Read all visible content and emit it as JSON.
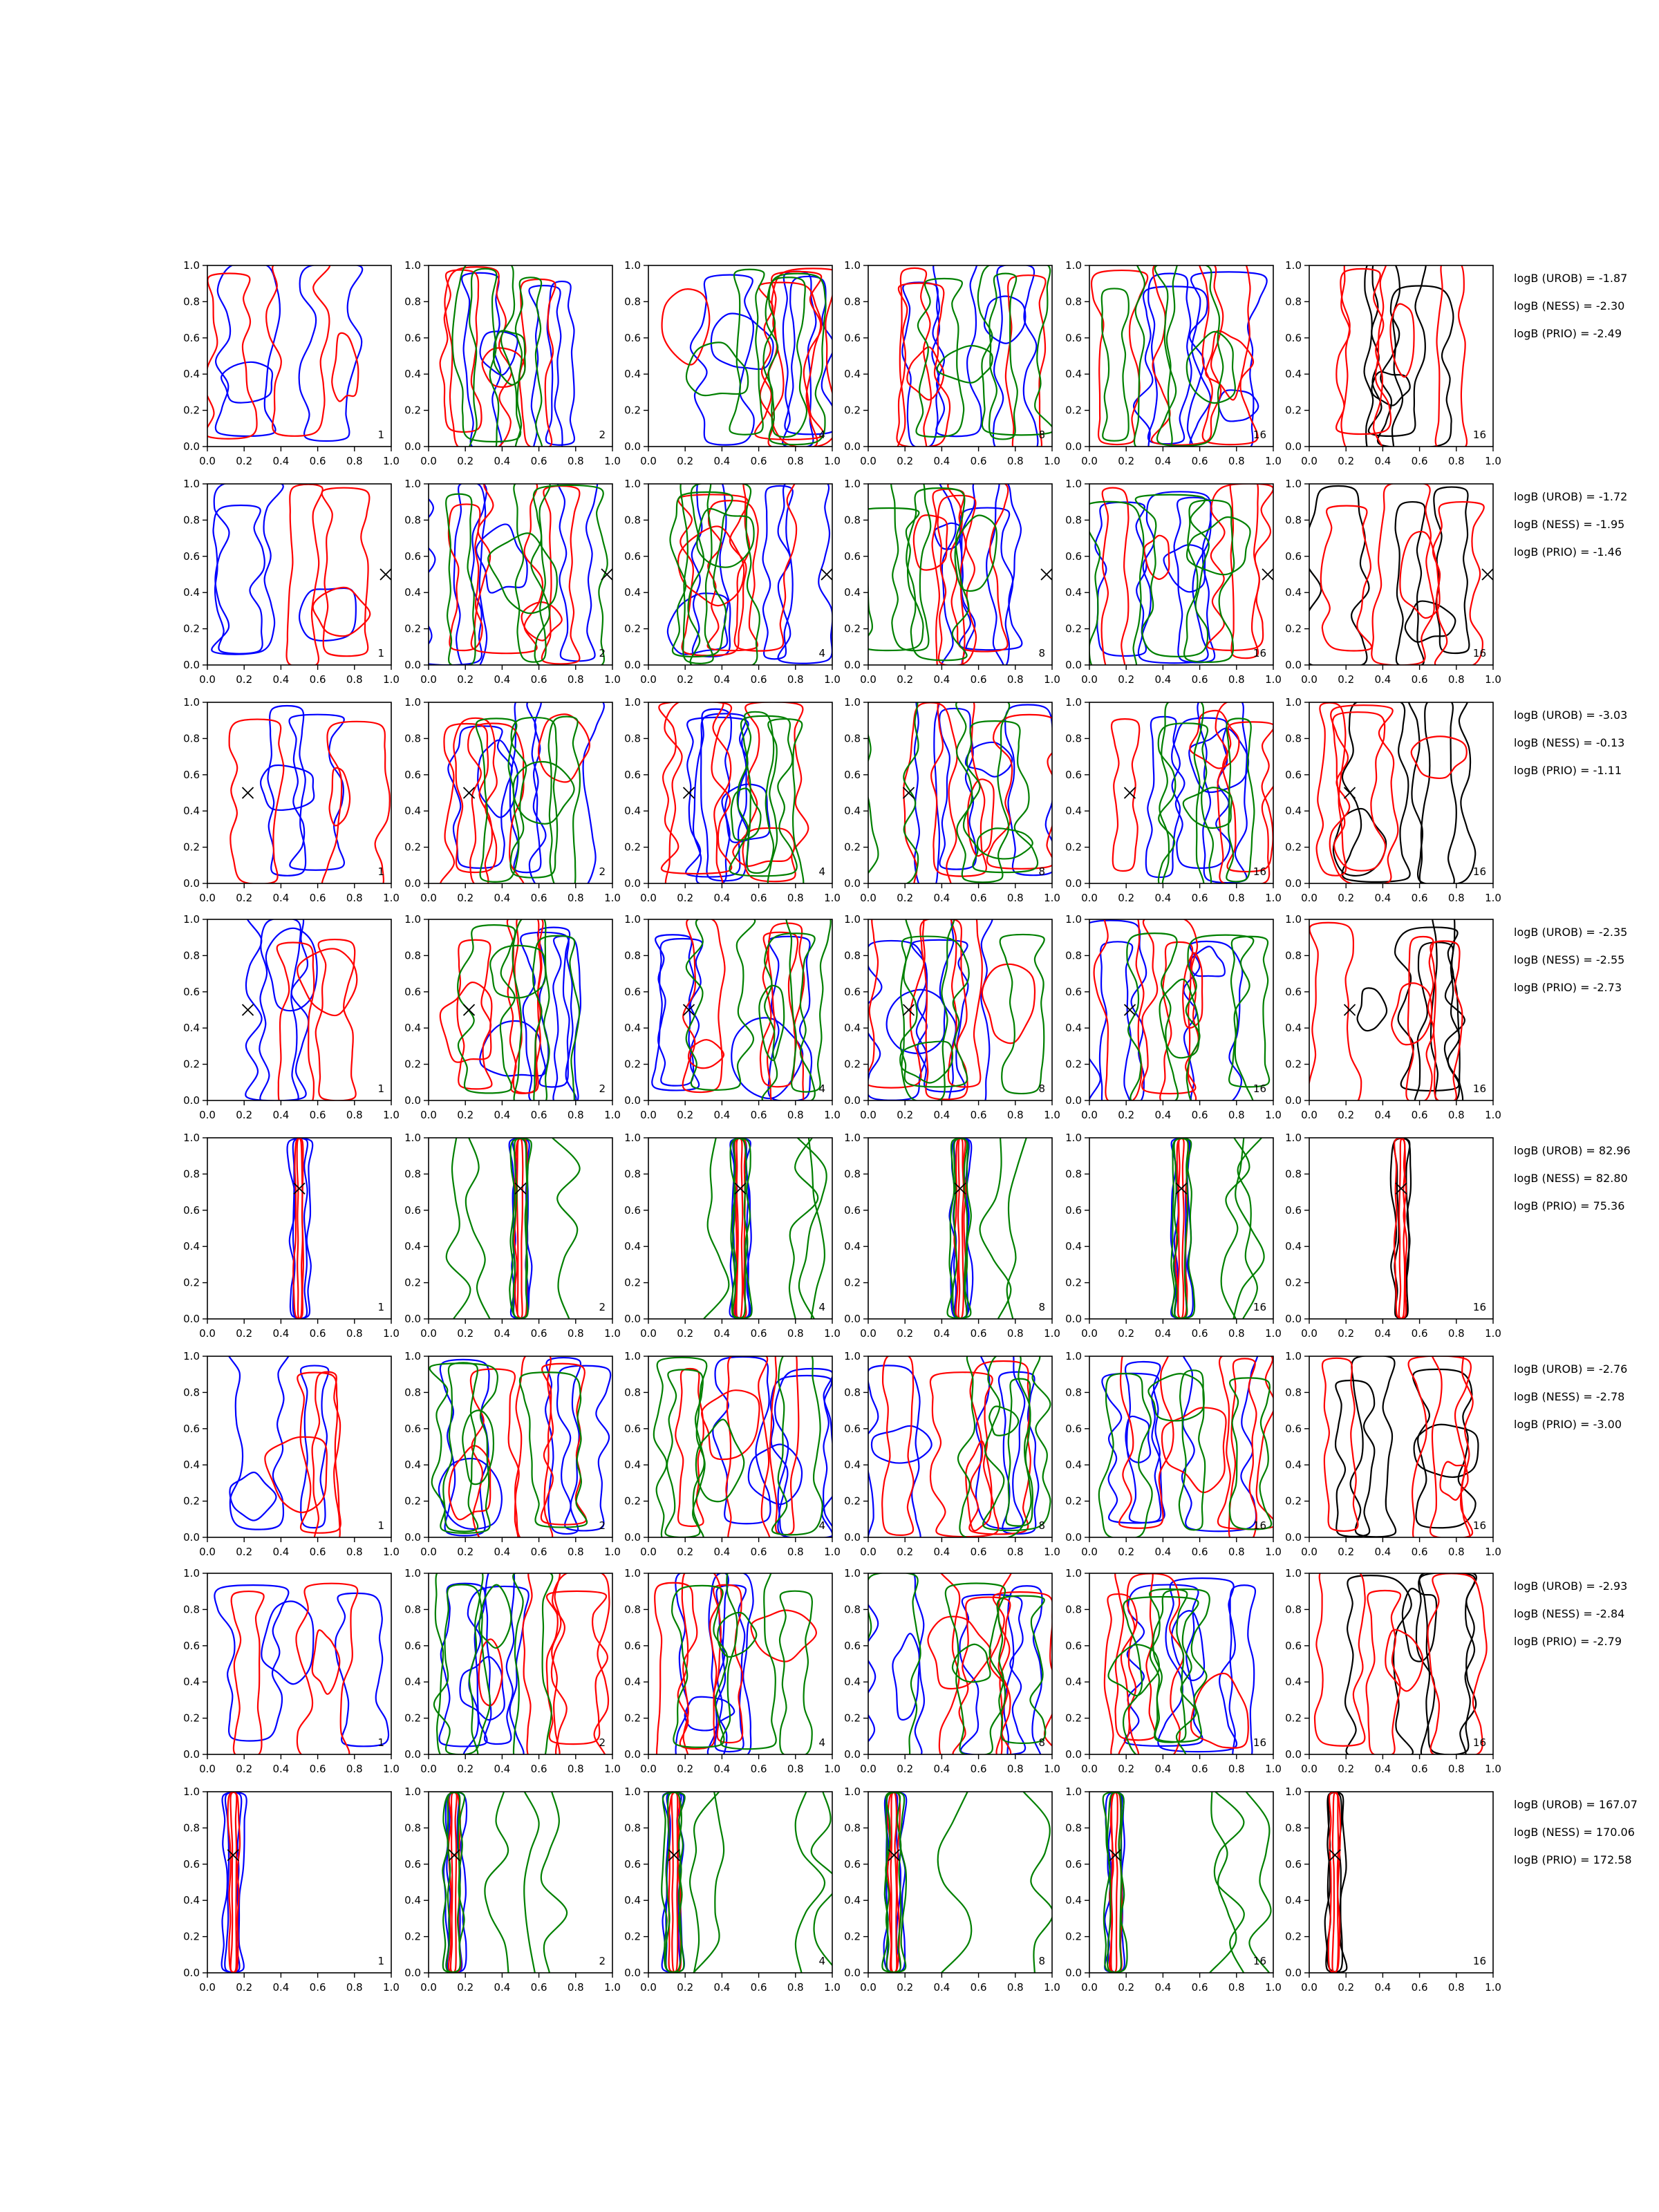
{
  "chart_data": {
    "type": "contour-grid",
    "rows": 8,
    "columns": 6,
    "xlim": [
      0,
      1
    ],
    "ylim": [
      0,
      1
    ],
    "ticks": [
      "0.0",
      "0.2",
      "0.4",
      "0.6",
      "0.8",
      "1.0"
    ],
    "column_labels": [
      "1",
      "2",
      "4",
      "8",
      "16",
      "16"
    ],
    "line_colors": {
      "blue": "#0000ff",
      "red": "#ff0000",
      "green": "#008000",
      "black": "#000000"
    },
    "rows_data": [
      {
        "marker": null,
        "features": "scattered",
        "logB": [
          "logB (UROB) = -1.87",
          "logB (NESS) = -2.30",
          "logB (PRIO) = -2.49"
        ]
      },
      {
        "marker": [
          0.97,
          0.5
        ],
        "features": "scattered",
        "logB": [
          "logB (UROB) = -1.72",
          "logB (NESS) = -1.95",
          "logB (PRIO) = -1.46"
        ]
      },
      {
        "marker": [
          0.22,
          0.5
        ],
        "features": "scattered",
        "logB": [
          "logB (UROB) = -3.03",
          "logB (NESS) = -0.13",
          "logB (PRIO) = -1.11"
        ]
      },
      {
        "marker": [
          0.22,
          0.5
        ],
        "features": "scattered",
        "logB": [
          "logB (UROB) = -2.35",
          "logB (NESS) = -2.55",
          "logB (PRIO) = -2.73"
        ]
      },
      {
        "marker": [
          0.5,
          0.72
        ],
        "features": "peak",
        "logB": [
          "logB (UROB) = 82.96",
          "logB (NESS) = 82.80",
          "logB (PRIO) = 75.36"
        ]
      },
      {
        "marker": null,
        "features": "scattered",
        "logB": [
          "logB (UROB) = -2.76",
          "logB (NESS) = -2.78",
          "logB (PRIO) = -3.00"
        ]
      },
      {
        "marker": null,
        "features": "scattered",
        "logB": [
          "logB (UROB) = -2.93",
          "logB (NESS) = -2.84",
          "logB (PRIO) = -2.79"
        ]
      },
      {
        "marker": [
          0.14,
          0.65
        ],
        "features": "peak",
        "logB": [
          "logB (UROB) = 167.07",
          "logB (NESS) = 170.06",
          "logB (PRIO) = 172.58"
        ]
      }
    ]
  }
}
